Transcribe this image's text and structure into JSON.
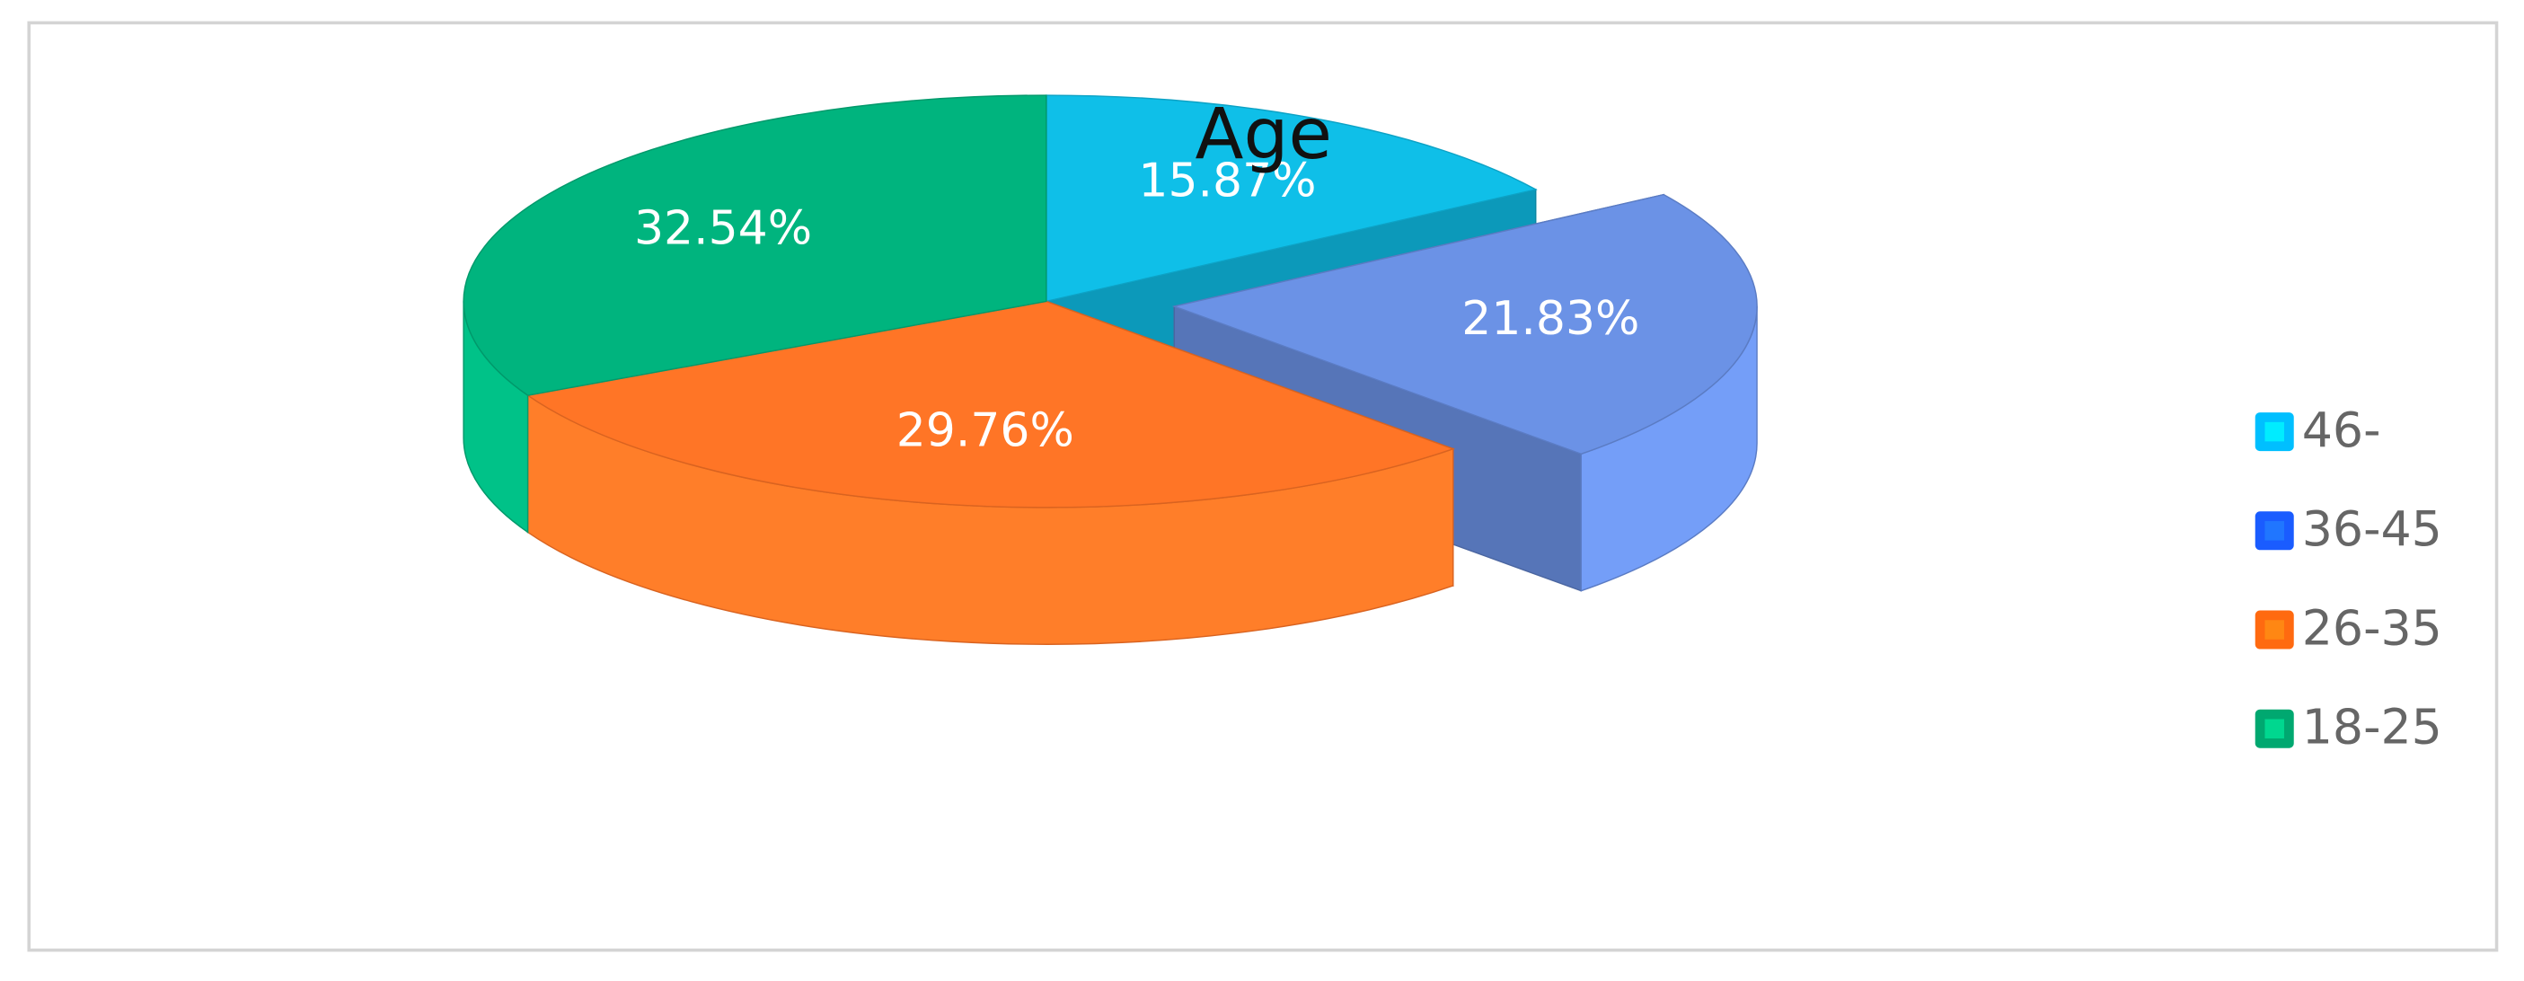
{
  "chart_data": {
    "type": "pie",
    "title": "Age",
    "categories": [
      "46-",
      "36-45",
      "26-35",
      "18-25"
    ],
    "values": [
      15.87,
      21.83,
      29.76,
      32.54
    ],
    "value_labels": [
      "15.87%",
      "21.83%",
      "29.76%",
      "32.54%"
    ],
    "colors": [
      "#0fbfe8",
      "#6b92e6",
      "#ff7526",
      "#00b47e"
    ],
    "legend_colors": [
      "#00bfff",
      "#1a5cff",
      "#ff6a10",
      "#00a870"
    ],
    "exploded": [
      false,
      true,
      false,
      false
    ],
    "legend": "right"
  }
}
